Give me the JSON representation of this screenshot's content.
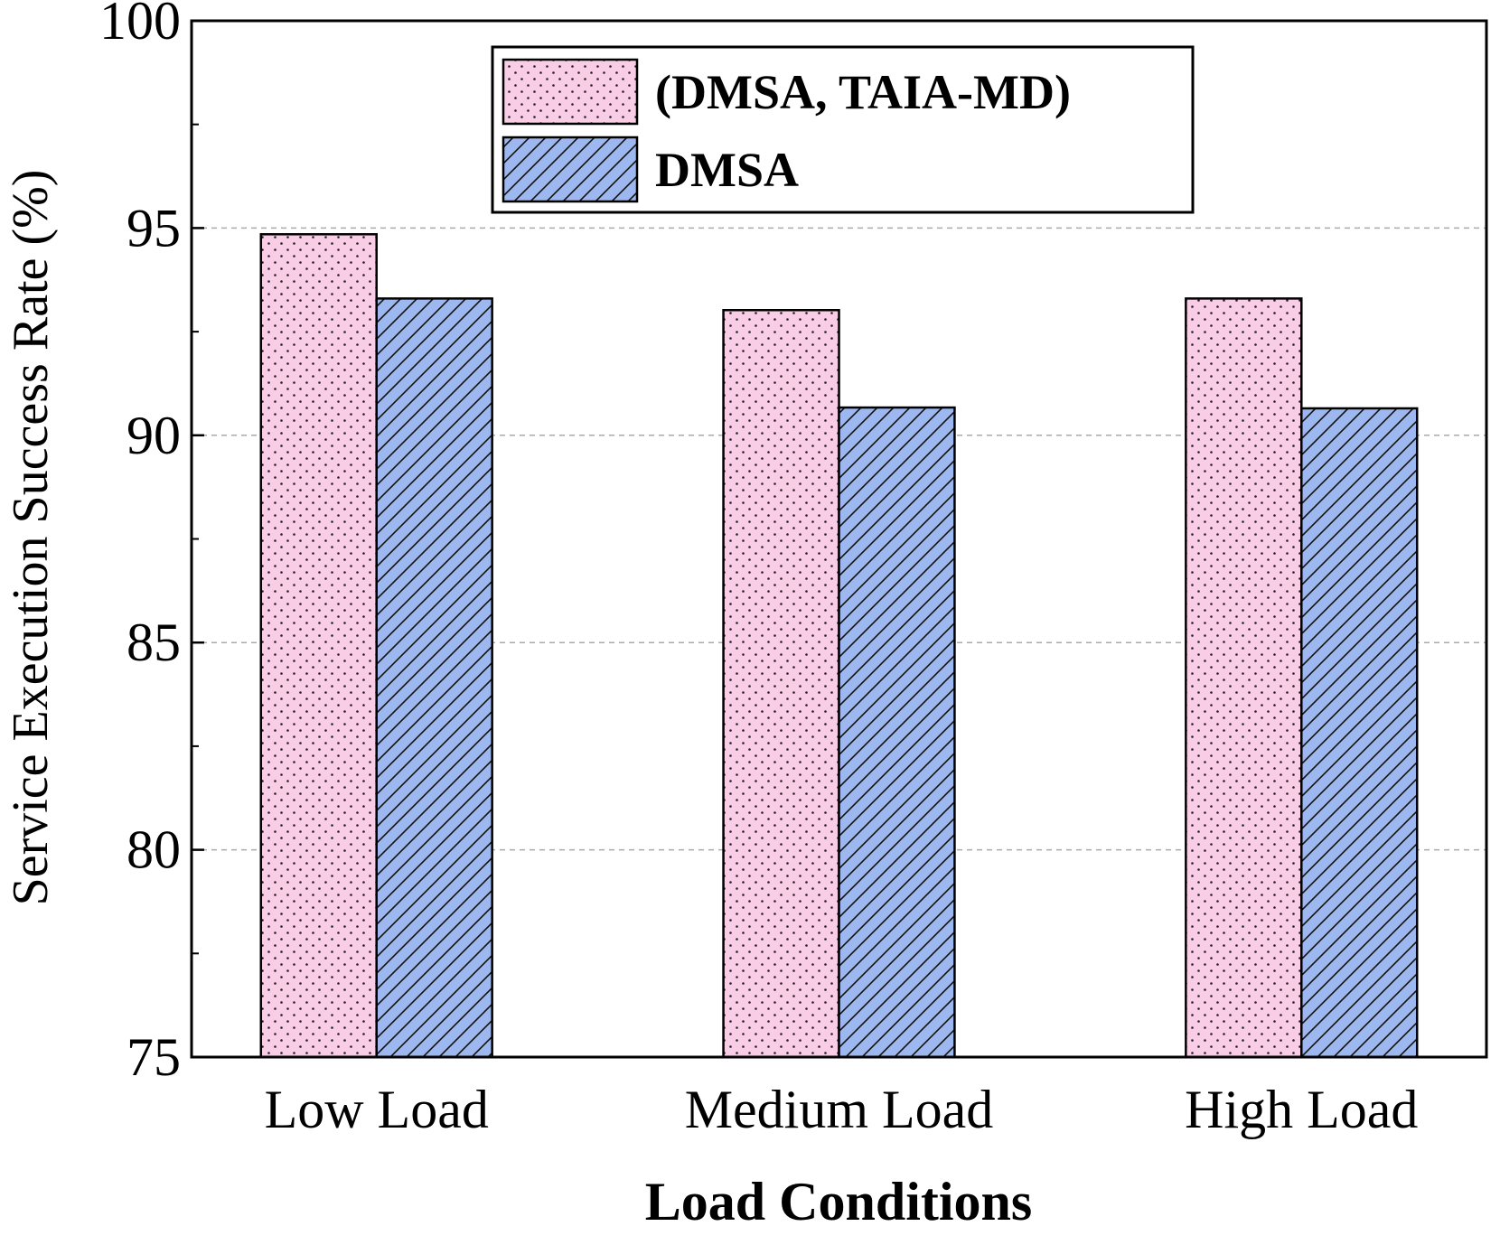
{
  "chart_data": {
    "type": "bar",
    "x_label": "Load Conditions",
    "y_label": "Service Execution Success Rate (%)",
    "categories": [
      "Low Load",
      "Medium Load",
      "High Load"
    ],
    "series": [
      {
        "name": "(DMSA, TAIA-MD)",
        "color": "#f9cde6",
        "pattern": "dots",
        "values": [
          94.85,
          93.02,
          93.3
        ]
      },
      {
        "name": "DMSA",
        "color": "#9db8f0",
        "pattern": "hatch",
        "values": [
          93.3,
          90.67,
          90.65
        ]
      }
    ],
    "ylim": [
      75,
      100
    ],
    "yticks": [
      75,
      80,
      85,
      90,
      95,
      100
    ],
    "yminor_ticks": [
      77.5,
      82.5,
      87.5,
      92.5,
      97.5
    ],
    "grid": true,
    "legend": "top"
  }
}
